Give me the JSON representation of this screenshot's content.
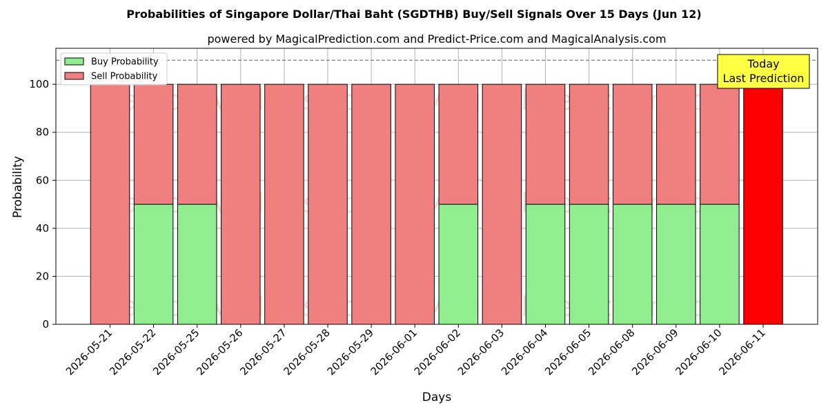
{
  "chart_data": {
    "type": "bar",
    "stacked": true,
    "title": "Probabilities of Singapore Dollar/Thai Baht (SGDTHB) Buy/Sell Signals Over 15 Days (Jun 12)",
    "subtitle": "powered by MagicalPrediction.com and Predict-Price.com and MagicalAnalysis.com",
    "xlabel": "Days",
    "ylabel": "Probability",
    "ylim": [
      0,
      115
    ],
    "yticks": [
      0,
      20,
      40,
      60,
      80,
      100
    ],
    "grid": true,
    "reference_line": 110,
    "legend_position": "top-left",
    "categories": [
      "2026-05-21",
      "2026-05-22",
      "2026-05-25",
      "2026-05-26",
      "2026-05-27",
      "2026-05-28",
      "2026-05-29",
      "2026-06-01",
      "2026-06-02",
      "2026-06-03",
      "2026-06-04",
      "2026-06-05",
      "2026-06-08",
      "2026-06-09",
      "2026-06-10",
      "2026-06-11"
    ],
    "series": [
      {
        "name": "Buy Probability",
        "color": "#90ee90",
        "values": [
          0,
          50,
          50,
          0,
          0,
          0,
          0,
          0,
          50,
          0,
          50,
          50,
          50,
          50,
          50,
          0
        ]
      },
      {
        "name": "Sell Probability",
        "color": "#f08080",
        "values": [
          100,
          50,
          50,
          100,
          100,
          100,
          100,
          100,
          50,
          100,
          50,
          50,
          50,
          50,
          50,
          100
        ]
      }
    ],
    "highlight": {
      "index": 15,
      "color": "#ff0000"
    },
    "annotation": {
      "lines": [
        "Today",
        "Last Prediction"
      ],
      "background": "#ffff44"
    },
    "watermarks": [
      "MagicalAnalysis.com",
      "MagicalPrediction.com"
    ]
  }
}
